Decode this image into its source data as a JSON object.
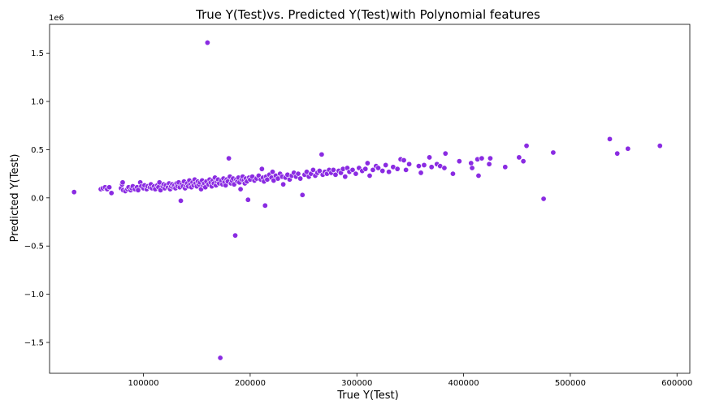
{
  "chart_data": {
    "type": "scatter",
    "title": "True Y(Test)vs. Predicted Y(Test)with Polynomial features",
    "xlabel": "True Y(Test)",
    "ylabel": "Predicted Y(Test)",
    "y_offset_label": "1e6",
    "xlim": [
      12000,
      612000
    ],
    "ylim": [
      -1.82,
      1.8
    ],
    "x_ticks": [
      100000,
      200000,
      300000,
      400000,
      500000,
      600000
    ],
    "x_tick_labels": [
      "100000",
      "200000",
      "300000",
      "400000",
      "500000",
      "600000"
    ],
    "y_ticks": [
      -1.5,
      -1.0,
      -0.5,
      0.0,
      0.5,
      1.0,
      1.5
    ],
    "y_tick_labels": [
      "−1.5",
      "−1.0",
      "−0.5",
      "0.0",
      "0.5",
      "1.0",
      "1.5"
    ],
    "grid": false,
    "marker_color": "#8a2be2",
    "marker_edge": "#ffffff",
    "points": [
      [
        35000,
        0.06
      ],
      [
        60000,
        0.09
      ],
      [
        62000,
        0.1
      ],
      [
        64000,
        0.11
      ],
      [
        66000,
        0.09
      ],
      [
        68000,
        0.11
      ],
      [
        70000,
        0.05
      ],
      [
        79000,
        0.1
      ],
      [
        80000,
        0.14
      ],
      [
        80500,
        0.16
      ],
      [
        81000,
        0.08
      ],
      [
        83000,
        0.07
      ],
      [
        85000,
        0.09
      ],
      [
        86000,
        0.11
      ],
      [
        88000,
        0.08
      ],
      [
        89000,
        0.1
      ],
      [
        90000,
        0.12
      ],
      [
        92000,
        0.09
      ],
      [
        94000,
        0.11
      ],
      [
        95000,
        0.08
      ],
      [
        97000,
        0.16
      ],
      [
        98000,
        0.12
      ],
      [
        100000,
        0.1
      ],
      [
        101000,
        0.13
      ],
      [
        103000,
        0.09
      ],
      [
        104000,
        0.12
      ],
      [
        106000,
        0.11
      ],
      [
        107000,
        0.14
      ],
      [
        108000,
        0.1
      ],
      [
        110000,
        0.12
      ],
      [
        111000,
        0.09
      ],
      [
        113000,
        0.13
      ],
      [
        114000,
        0.11
      ],
      [
        115000,
        0.16
      ],
      [
        116000,
        0.08
      ],
      [
        118000,
        0.12
      ],
      [
        119000,
        0.14
      ],
      [
        120000,
        0.1
      ],
      [
        121000,
        0.13
      ],
      [
        123000,
        0.11
      ],
      [
        124000,
        0.15
      ],
      [
        125000,
        0.09
      ],
      [
        126000,
        0.12
      ],
      [
        127000,
        0.14
      ],
      [
        128000,
        0.11
      ],
      [
        129000,
        0.13
      ],
      [
        130000,
        0.1
      ],
      [
        131000,
        0.15
      ],
      [
        132000,
        0.12
      ],
      [
        133000,
        0.16
      ],
      [
        134000,
        0.11
      ],
      [
        135000,
        -0.03
      ],
      [
        136000,
        0.14
      ],
      [
        137000,
        0.12
      ],
      [
        138000,
        0.17
      ],
      [
        139000,
        0.1
      ],
      [
        140000,
        0.13
      ],
      [
        141000,
        0.15
      ],
      [
        142000,
        0.12
      ],
      [
        143000,
        0.18
      ],
      [
        144000,
        0.14
      ],
      [
        145000,
        0.11
      ],
      [
        146000,
        0.16
      ],
      [
        147000,
        0.13
      ],
      [
        148000,
        0.19
      ],
      [
        149000,
        0.15
      ],
      [
        150000,
        0.12
      ],
      [
        151000,
        0.17
      ],
      [
        152000,
        0.14
      ],
      [
        153000,
        0.16
      ],
      [
        154000,
        0.09
      ],
      [
        155000,
        0.18
      ],
      [
        156000,
        0.13
      ],
      [
        157000,
        0.15
      ],
      [
        158000,
        0.11
      ],
      [
        159000,
        0.17
      ],
      [
        160000,
        1.61
      ],
      [
        161000,
        0.14
      ],
      [
        162000,
        0.19
      ],
      [
        163000,
        0.16
      ],
      [
        164000,
        0.12
      ],
      [
        165000,
        0.18
      ],
      [
        166000,
        0.15
      ],
      [
        167000,
        0.21
      ],
      [
        168000,
        0.13
      ],
      [
        169000,
        0.17
      ],
      [
        170000,
        0.19
      ],
      [
        171000,
        0.15
      ],
      [
        172000,
        -1.66
      ],
      [
        173000,
        0.18
      ],
      [
        174000,
        0.14
      ],
      [
        175000,
        0.2
      ],
      [
        176000,
        0.16
      ],
      [
        177000,
        0.13
      ],
      [
        178000,
        0.19
      ],
      [
        179000,
        0.17
      ],
      [
        180000,
        0.41
      ],
      [
        181000,
        0.22
      ],
      [
        182000,
        0.15
      ],
      [
        183000,
        0.18
      ],
      [
        184000,
        0.2
      ],
      [
        185000,
        0.14
      ],
      [
        186000,
        -0.39
      ],
      [
        187000,
        0.19
      ],
      [
        188000,
        0.17
      ],
      [
        189000,
        0.21
      ],
      [
        190000,
        0.16
      ],
      [
        191000,
        0.09
      ],
      [
        192000,
        0.19
      ],
      [
        193000,
        0.22
      ],
      [
        194000,
        0.18
      ],
      [
        195000,
        0.15
      ],
      [
        196000,
        0.2
      ],
      [
        197000,
        0.17
      ],
      [
        198000,
        -0.02
      ],
      [
        199000,
        0.21
      ],
      [
        200000,
        0.19
      ],
      [
        202000,
        0.22
      ],
      [
        204000,
        0.18
      ],
      [
        206000,
        0.2
      ],
      [
        208000,
        0.23
      ],
      [
        210000,
        0.19
      ],
      [
        211000,
        0.3
      ],
      [
        212000,
        0.21
      ],
      [
        213000,
        0.17
      ],
      [
        214000,
        -0.08
      ],
      [
        215000,
        0.22
      ],
      [
        216000,
        0.19
      ],
      [
        218000,
        0.24
      ],
      [
        220000,
        0.21
      ],
      [
        221000,
        0.27
      ],
      [
        222000,
        0.18
      ],
      [
        224000,
        0.23
      ],
      [
        226000,
        0.2
      ],
      [
        228000,
        0.25
      ],
      [
        230000,
        0.22
      ],
      [
        231000,
        0.14
      ],
      [
        233000,
        0.21
      ],
      [
        235000,
        0.24
      ],
      [
        237000,
        0.19
      ],
      [
        239000,
        0.23
      ],
      [
        241000,
        0.26
      ],
      [
        243000,
        0.22
      ],
      [
        245000,
        0.25
      ],
      [
        247000,
        0.2
      ],
      [
        249000,
        0.03
      ],
      [
        251000,
        0.24
      ],
      [
        253000,
        0.27
      ],
      [
        255000,
        0.22
      ],
      [
        257000,
        0.25
      ],
      [
        259000,
        0.29
      ],
      [
        261000,
        0.23
      ],
      [
        263000,
        0.26
      ],
      [
        265000,
        0.28
      ],
      [
        267000,
        0.45
      ],
      [
        268000,
        0.24
      ],
      [
        270000,
        0.27
      ],
      [
        272000,
        0.25
      ],
      [
        274000,
        0.29
      ],
      [
        276000,
        0.26
      ],
      [
        278000,
        0.29
      ],
      [
        280000,
        0.24
      ],
      [
        283000,
        0.28
      ],
      [
        285000,
        0.26
      ],
      [
        287000,
        0.3
      ],
      [
        289000,
        0.22
      ],
      [
        291000,
        0.31
      ],
      [
        293000,
        0.27
      ],
      [
        296000,
        0.29
      ],
      [
        299000,
        0.25
      ],
      [
        302000,
        0.31
      ],
      [
        305000,
        0.28
      ],
      [
        308000,
        0.3
      ],
      [
        310000,
        0.36
      ],
      [
        312000,
        0.23
      ],
      [
        315000,
        0.29
      ],
      [
        318000,
        0.33
      ],
      [
        320000,
        0.31
      ],
      [
        324000,
        0.28
      ],
      [
        327000,
        0.34
      ],
      [
        330000,
        0.27
      ],
      [
        334000,
        0.32
      ],
      [
        338000,
        0.3
      ],
      [
        341000,
        0.4
      ],
      [
        344000,
        0.39
      ],
      [
        346000,
        0.29
      ],
      [
        349000,
        0.35
      ],
      [
        358000,
        0.33
      ],
      [
        360000,
        0.26
      ],
      [
        363000,
        0.34
      ],
      [
        368000,
        0.42
      ],
      [
        370000,
        0.32
      ],
      [
        375000,
        0.35
      ],
      [
        378000,
        0.33
      ],
      [
        382000,
        0.31
      ],
      [
        383000,
        0.46
      ],
      [
        390000,
        0.25
      ],
      [
        396000,
        0.38
      ],
      [
        407000,
        0.36
      ],
      [
        408000,
        0.31
      ],
      [
        413000,
        0.4
      ],
      [
        414000,
        0.23
      ],
      [
        417000,
        0.41
      ],
      [
        424000,
        0.35
      ],
      [
        425000,
        0.41
      ],
      [
        439000,
        0.32
      ],
      [
        452000,
        0.42
      ],
      [
        456000,
        0.38
      ],
      [
        459000,
        0.54
      ],
      [
        475000,
        -0.01
      ],
      [
        484000,
        0.47
      ],
      [
        537000,
        0.61
      ],
      [
        544000,
        0.46
      ],
      [
        554000,
        0.51
      ],
      [
        584000,
        0.54
      ]
    ]
  }
}
